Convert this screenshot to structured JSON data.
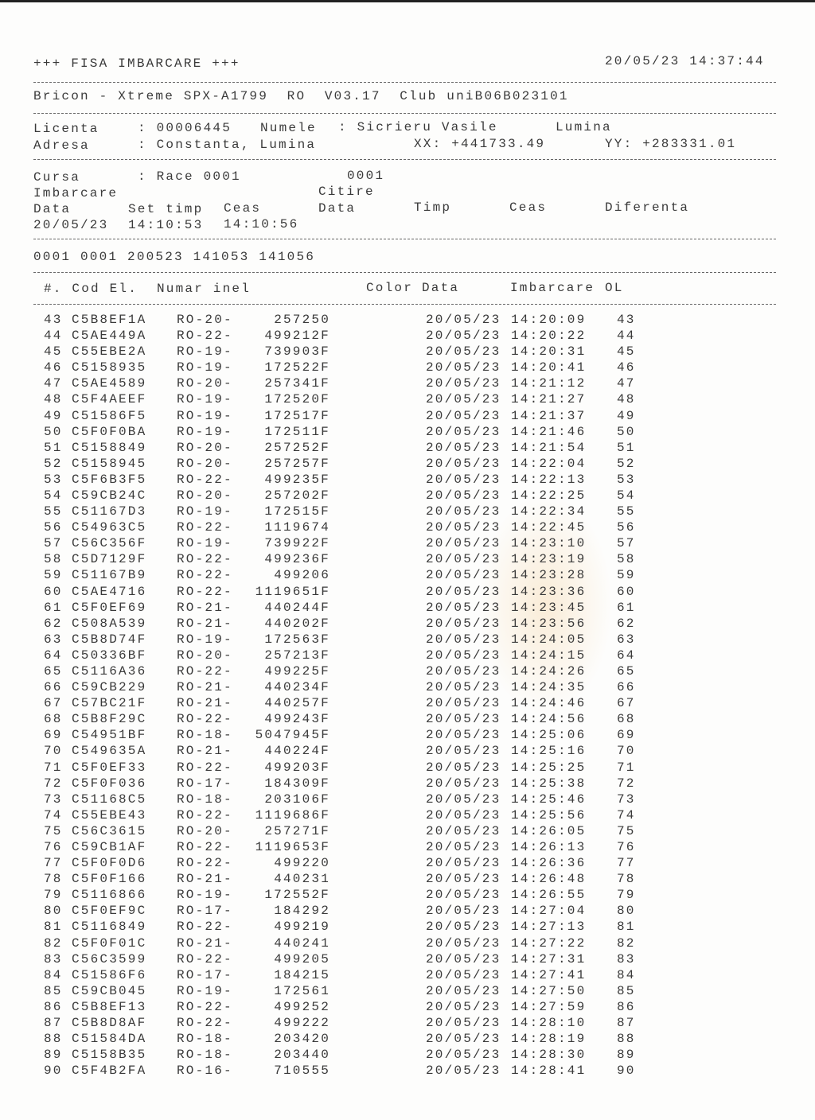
{
  "header": {
    "title": "+++ FISA IMBARCARE +++",
    "printed_at": "20/05/23 14:37:44",
    "device_line": "Bricon - Xtreme SPX-A1799  RO  V03.17  Club uniB06B023101"
  },
  "fancier": {
    "licenta_label": "Licenta",
    "licenta_value": ": 00006445",
    "numele_label": "Numele",
    "numele_value": ": Sicrieru Vasile",
    "locality": "Lumina",
    "adresa_label": "Adresa",
    "adresa_value": ": Constanta, Lumina",
    "xx": "XX: +441733.49",
    "yy": "YY: +283331.01"
  },
  "race": {
    "cursa_label": "Cursa",
    "cursa_value": ": Race 0001",
    "cursa_code": "0001",
    "imbarcare_label": "Imbarcare",
    "citire_label": "Citire",
    "col_data": "Data",
    "col_set_timp": "Set timp",
    "col_ceas": "Ceas",
    "col_citire_data": "Data",
    "col_timp": "Timp",
    "col_citire_ceas": "Ceas",
    "col_diferenta": "Diferenta",
    "imb_data": "20/05/23",
    "imb_set_timp": "14:10:53",
    "imb_ceas": "14:10:56",
    "code_line": "0001 0001 200523 141053 141056"
  },
  "table": {
    "headers": {
      "no_code": "#. Cod El.",
      "ring": "Numar inel",
      "color": "Color",
      "date": "Data",
      "imbarcare": "Imbarcare",
      "ol": "OL"
    },
    "rows": [
      [
        "43",
        "C5B8EF1A",
        "RO-20-",
        "257250",
        "20/05/23",
        "14:20:09",
        "43"
      ],
      [
        "44",
        "C5AE449A",
        "RO-22-",
        "499212F",
        "20/05/23",
        "14:20:22",
        "44"
      ],
      [
        "45",
        "C55EBE2A",
        "RO-19-",
        "739903F",
        "20/05/23",
        "14:20:31",
        "45"
      ],
      [
        "46",
        "C5158935",
        "RO-19-",
        "172522F",
        "20/05/23",
        "14:20:41",
        "46"
      ],
      [
        "47",
        "C5AE4589",
        "RO-20-",
        "257341F",
        "20/05/23",
        "14:21:12",
        "47"
      ],
      [
        "48",
        "C5F4AEEF",
        "RO-19-",
        "172520F",
        "20/05/23",
        "14:21:27",
        "48"
      ],
      [
        "49",
        "C51586F5",
        "RO-19-",
        "172517F",
        "20/05/23",
        "14:21:37",
        "49"
      ],
      [
        "50",
        "C5F0F0BA",
        "RO-19-",
        "172511F",
        "20/05/23",
        "14:21:46",
        "50"
      ],
      [
        "51",
        "C5158849",
        "RO-20-",
        "257252F",
        "20/05/23",
        "14:21:54",
        "51"
      ],
      [
        "52",
        "C5158945",
        "RO-20-",
        "257257F",
        "20/05/23",
        "14:22:04",
        "52"
      ],
      [
        "53",
        "C5F6B3F5",
        "RO-22-",
        "499235F",
        "20/05/23",
        "14:22:13",
        "53"
      ],
      [
        "54",
        "C59CB24C",
        "RO-20-",
        "257202F",
        "20/05/23",
        "14:22:25",
        "54"
      ],
      [
        "55",
        "C51167D3",
        "RO-19-",
        "172515F",
        "20/05/23",
        "14:22:34",
        "55"
      ],
      [
        "56",
        "C54963C5",
        "RO-22-",
        "1119674",
        "20/05/23",
        "14:22:45",
        "56"
      ],
      [
        "57",
        "C56C356F",
        "RO-19-",
        "739922F",
        "20/05/23",
        "14:23:10",
        "57"
      ],
      [
        "58",
        "C5D7129F",
        "RO-22-",
        "499236F",
        "20/05/23",
        "14:23:19",
        "58"
      ],
      [
        "59",
        "C51167B9",
        "RO-22-",
        "499206",
        "20/05/23",
        "14:23:28",
        "59"
      ],
      [
        "60",
        "C5AE4716",
        "RO-22-",
        "1119651F",
        "20/05/23",
        "14:23:36",
        "60"
      ],
      [
        "61",
        "C5F0EF69",
        "RO-21-",
        "440244F",
        "20/05/23",
        "14:23:45",
        "61"
      ],
      [
        "62",
        "C508A539",
        "RO-21-",
        "440202F",
        "20/05/23",
        "14:23:56",
        "62"
      ],
      [
        "63",
        "C5B8D74F",
        "RO-19-",
        "172563F",
        "20/05/23",
        "14:24:05",
        "63"
      ],
      [
        "64",
        "C50336BF",
        "RO-20-",
        "257213F",
        "20/05/23",
        "14:24:15",
        "64"
      ],
      [
        "65",
        "C5116A36",
        "RO-22-",
        "499225F",
        "20/05/23",
        "14:24:26",
        "65"
      ],
      [
        "66",
        "C59CB229",
        "RO-21-",
        "440234F",
        "20/05/23",
        "14:24:35",
        "66"
      ],
      [
        "67",
        "C57BC21F",
        "RO-21-",
        "440257F",
        "20/05/23",
        "14:24:46",
        "67"
      ],
      [
        "68",
        "C5B8F29C",
        "RO-22-",
        "499243F",
        "20/05/23",
        "14:24:56",
        "68"
      ],
      [
        "69",
        "C54951BF",
        "RO-18-",
        "5047945F",
        "20/05/23",
        "14:25:06",
        "69"
      ],
      [
        "70",
        "C549635A",
        "RO-21-",
        "440224F",
        "20/05/23",
        "14:25:16",
        "70"
      ],
      [
        "71",
        "C5F0EF33",
        "RO-22-",
        "499203F",
        "20/05/23",
        "14:25:25",
        "71"
      ],
      [
        "72",
        "C5F0F036",
        "RO-17-",
        "184309F",
        "20/05/23",
        "14:25:38",
        "72"
      ],
      [
        "73",
        "C51168C5",
        "RO-18-",
        "203106F",
        "20/05/23",
        "14:25:46",
        "73"
      ],
      [
        "74",
        "C55EBE43",
        "RO-22-",
        "1119686F",
        "20/05/23",
        "14:25:56",
        "74"
      ],
      [
        "75",
        "C56C3615",
        "RO-20-",
        "257271F",
        "20/05/23",
        "14:26:05",
        "75"
      ],
      [
        "76",
        "C59CB1AF",
        "RO-22-",
        "1119653F",
        "20/05/23",
        "14:26:13",
        "76"
      ],
      [
        "77",
        "C5F0F0D6",
        "RO-22-",
        "499220",
        "20/05/23",
        "14:26:36",
        "77"
      ],
      [
        "78",
        "C5F0F166",
        "RO-21-",
        "440231",
        "20/05/23",
        "14:26:48",
        "78"
      ],
      [
        "79",
        "C5116866",
        "RO-19-",
        "172552F",
        "20/05/23",
        "14:26:55",
        "79"
      ],
      [
        "80",
        "C5F0EF9C",
        "RO-17-",
        "184292",
        "20/05/23",
        "14:27:04",
        "80"
      ],
      [
        "81",
        "C5116849",
        "RO-22-",
        "499219",
        "20/05/23",
        "14:27:13",
        "81"
      ],
      [
        "82",
        "C5F0F01C",
        "RO-21-",
        "440241",
        "20/05/23",
        "14:27:22",
        "82"
      ],
      [
        "83",
        "C56C3599",
        "RO-22-",
        "499205",
        "20/05/23",
        "14:27:31",
        "83"
      ],
      [
        "84",
        "C51586F6",
        "RO-17-",
        "184215",
        "20/05/23",
        "14:27:41",
        "84"
      ],
      [
        "85",
        "C59CB045",
        "RO-19-",
        "172561",
        "20/05/23",
        "14:27:50",
        "85"
      ],
      [
        "86",
        "C5B8EF13",
        "RO-22-",
        "499252",
        "20/05/23",
        "14:27:59",
        "86"
      ],
      [
        "87",
        "C5B8D8AF",
        "RO-22-",
        "499222",
        "20/05/23",
        "14:28:10",
        "87"
      ],
      [
        "88",
        "C51584DA",
        "RO-18-",
        "203420",
        "20/05/23",
        "14:28:19",
        "88"
      ],
      [
        "89",
        "C5158B35",
        "RO-18-",
        "203440",
        "20/05/23",
        "14:28:30",
        "89"
      ],
      [
        "90",
        "C5F4B2FA",
        "RO-16-",
        "710555",
        "20/05/23",
        "14:28:41",
        "90"
      ]
    ]
  }
}
